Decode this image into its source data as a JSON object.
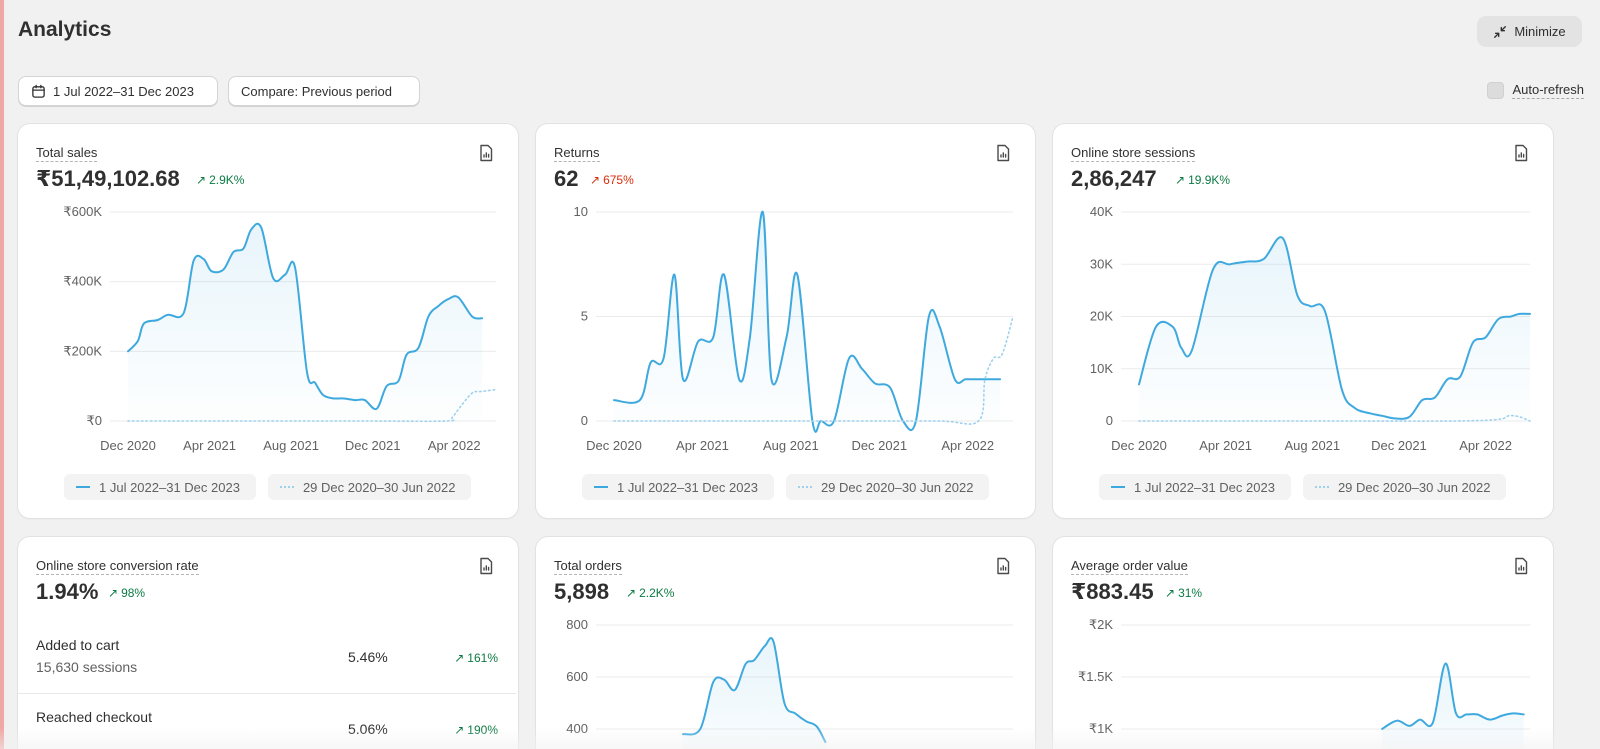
{
  "page": {
    "title": "Analytics",
    "minimize_label": "Minimize",
    "date_range": "1 Jul 2022–31 Dec 2023",
    "compare": "Compare: Previous period",
    "auto_refresh": "Auto-refresh"
  },
  "colors": {
    "accent": "#3ea9de",
    "up": "#0c7a43",
    "down": "#d82c0d",
    "compare_line": "#9fd1ee"
  },
  "legend": {
    "current": "1 Jul 2022–31 Dec 2023",
    "previous": "29 Dec 2020–30 Jun 2022"
  },
  "cards": {
    "total_sales": {
      "title": "Total sales",
      "value": "₹51,49,102.68",
      "change": "2.9K%",
      "trend": "up"
    },
    "returns": {
      "title": "Returns",
      "value": "62",
      "change": "675%",
      "trend": "down"
    },
    "sessions": {
      "title": "Online store sessions",
      "value": "2,86,247",
      "change": "19.9K%",
      "trend": "up"
    },
    "conversion": {
      "title": "Online store conversion rate",
      "value": "1.94%",
      "change": "98%",
      "trend": "up",
      "rows": [
        {
          "label": "Added to cart",
          "sub": "15,630 sessions",
          "pct": "5.46%",
          "change": "161%"
        },
        {
          "label": "Reached checkout",
          "sub": "",
          "pct": "5.06%",
          "change": "190%"
        }
      ]
    },
    "orders": {
      "title": "Total orders",
      "value": "5,898",
      "change": "2.2K%",
      "trend": "up"
    },
    "aov": {
      "title": "Average order value",
      "value": "₹883.45",
      "change": "31%",
      "trend": "up"
    }
  },
  "chart_data": [
    {
      "id": "total_sales",
      "type": "line",
      "x_ticks": [
        "Dec 2020",
        "Apr 2021",
        "Aug 2021",
        "Dec 2021",
        "Apr 2022"
      ],
      "y_ticks": [
        "₹0",
        "₹200K",
        "₹400K",
        "₹600K"
      ],
      "ylim": [
        0,
        600000
      ],
      "series": [
        {
          "name": "1 Jul 2022–31 Dec 2023",
          "style": "solid",
          "x": [
            0,
            0.5,
            0.8,
            1.5,
            2,
            2.8,
            3.3,
            3.8,
            4.2,
            4.8,
            5.3,
            5.8,
            6.2,
            6.7,
            7.3,
            7.9,
            8.4,
            9.0,
            9.4,
            9.8,
            10.3,
            10.8,
            11.4,
            11.9,
            12.5,
            13.0,
            13.6,
            14.0,
            14.6,
            15.1,
            15.6,
            16.1,
            16.6,
            17.3,
            17.8
          ],
          "y": [
            200000,
            230000,
            280000,
            290000,
            305000,
            310000,
            460000,
            465000,
            430000,
            435000,
            485000,
            495000,
            550000,
            555000,
            410000,
            420000,
            440000,
            140000,
            110000,
            75000,
            65000,
            65000,
            60000,
            60000,
            35000,
            100000,
            115000,
            190000,
            210000,
            300000,
            330000,
            350000,
            355000,
            300000,
            295000
          ]
        },
        {
          "name": "29 Dec 2020–30 Jun 2022",
          "style": "dotted",
          "x": [
            0,
            4,
            8,
            12,
            16,
            16.3,
            16.7,
            17.3,
            17.8,
            18.5
          ],
          "y": [
            0,
            0,
            0,
            0,
            0,
            10000,
            40000,
            80000,
            85000,
            90000
          ]
        }
      ]
    },
    {
      "id": "returns",
      "type": "line",
      "x_ticks": [
        "Dec 2020",
        "Apr 2021",
        "Aug 2021",
        "Dec 2021",
        "Apr 2022"
      ],
      "y_ticks": [
        "0",
        "5",
        "10"
      ],
      "ylim": [
        0,
        10
      ],
      "series": [
        {
          "name": "1 Jul 2022–31 Dec 2023",
          "style": "solid",
          "x": [
            0,
            1.2,
            1.7,
            2.3,
            2.8,
            3.2,
            3.9,
            4.6,
            5.1,
            5.8,
            6.3,
            6.9,
            7.3,
            8.0,
            8.5,
            9.2,
            9.6,
            10.2,
            10.9,
            11.5,
            12.1,
            12.8,
            13.4,
            14.0,
            14.6,
            15.1,
            15.8,
            16.3,
            16.8,
            17.5,
            17.9
          ],
          "y": [
            1,
            1,
            2.8,
            3,
            7,
            2,
            3.8,
            4,
            7,
            2,
            4,
            10,
            2,
            4,
            7,
            0,
            0,
            0,
            3,
            2.5,
            1.8,
            1.6,
            0,
            0,
            5,
            4.5,
            2,
            2,
            2,
            2,
            2
          ]
        },
        {
          "name": "29 Dec 2020–30 Jun 2022",
          "style": "dotted",
          "x": [
            0,
            5,
            10,
            15,
            16.9,
            17.2,
            17.6,
            18.0,
            18.5
          ],
          "y": [
            0,
            0,
            0,
            0,
            0,
            2,
            3,
            3.2,
            5
          ]
        }
      ]
    },
    {
      "id": "sessions",
      "type": "line",
      "x_ticks": [
        "Dec 2020",
        "Apr 2021",
        "Aug 2021",
        "Dec 2021",
        "Apr 2022"
      ],
      "y_ticks": [
        "0",
        "10K",
        "20K",
        "30K",
        "40K"
      ],
      "ylim": [
        0,
        40000
      ],
      "series": [
        {
          "name": "1 Jul 2022–31 Dec 2023",
          "style": "solid",
          "x": [
            0,
            0.8,
            1.6,
            2.0,
            2.5,
            3.5,
            4.3,
            5.1,
            5.9,
            6.8,
            7.5,
            8.1,
            8.8,
            9.6,
            10.2,
            10.9,
            11.5,
            12.1,
            12.8,
            13.4,
            14.0,
            14.6,
            15.2,
            15.8,
            16.4,
            17.0,
            17.6,
            18.0,
            18.5
          ],
          "y": [
            7000,
            18000,
            18000,
            14000,
            13500,
            29000,
            30000,
            30500,
            31000,
            35000,
            24000,
            22000,
            21000,
            6000,
            2500,
            1500,
            1000,
            500,
            800,
            4000,
            4500,
            8000,
            8500,
            15000,
            16000,
            19500,
            20000,
            20500,
            20500
          ]
        },
        {
          "name": "29 Dec 2020–30 Jun 2022",
          "style": "dotted",
          "x": [
            0,
            5,
            10,
            15,
            17,
            17.5,
            18,
            18.5
          ],
          "y": [
            0,
            0,
            0,
            0,
            300,
            1000,
            800,
            0
          ]
        }
      ]
    },
    {
      "id": "orders",
      "type": "line",
      "x_ticks": [],
      "y_ticks": [
        "400",
        "600",
        "800"
      ],
      "ylim": [
        0,
        800
      ],
      "series": [
        {
          "name": "1 Jul 2022–31 Dec 2023",
          "style": "solid",
          "x": [
            3.2,
            4.0,
            4.6,
            5.1,
            5.6,
            6.1,
            6.5,
            7.0,
            7.4,
            7.9,
            8.4,
            8.9,
            9.4,
            9.8
          ],
          "y": [
            380,
            400,
            580,
            590,
            550,
            650,
            665,
            720,
            735,
            500,
            460,
            430,
            410,
            350
          ]
        }
      ]
    },
    {
      "id": "aov",
      "type": "line",
      "x_ticks": [],
      "y_ticks": [
        "₹1K",
        "₹1.5K",
        "₹2K"
      ],
      "ylim": [
        0,
        2000
      ],
      "series": [
        {
          "name": "1 Jul 2022–31 Dec 2023",
          "style": "solid",
          "x": [
            11.5,
            12.2,
            12.8,
            13.3,
            13.9,
            14.5,
            15.0,
            15.5,
            16.0,
            16.6,
            17.2,
            17.7,
            18.2
          ],
          "y": [
            1000,
            1080,
            1030,
            1090,
            1060,
            1630,
            1150,
            1140,
            1140,
            1090,
            1130,
            1150,
            1140
          ]
        }
      ]
    }
  ]
}
